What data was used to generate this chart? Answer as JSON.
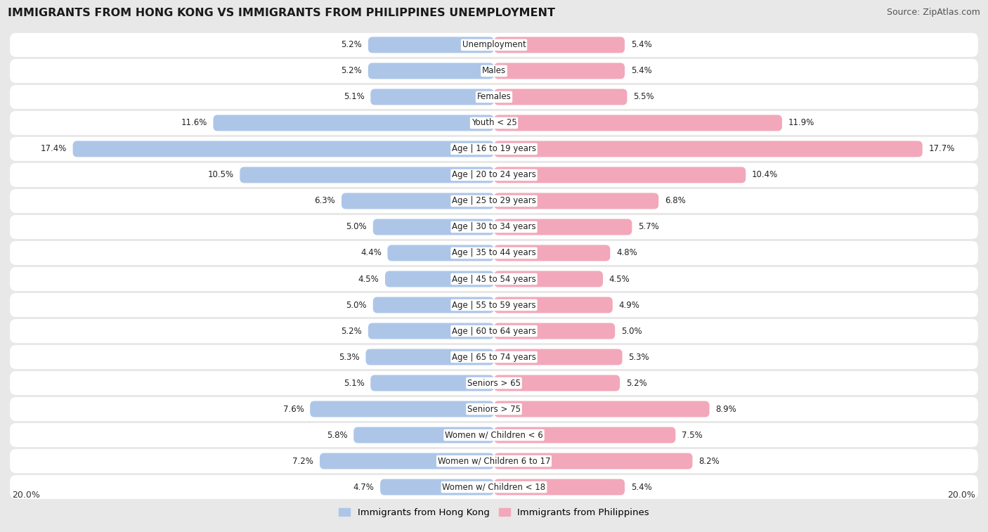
{
  "title": "IMMIGRANTS FROM HONG KONG VS IMMIGRANTS FROM PHILIPPINES UNEMPLOYMENT",
  "source": "Source: ZipAtlas.com",
  "categories": [
    "Unemployment",
    "Males",
    "Females",
    "Youth < 25",
    "Age | 16 to 19 years",
    "Age | 20 to 24 years",
    "Age | 25 to 29 years",
    "Age | 30 to 34 years",
    "Age | 35 to 44 years",
    "Age | 45 to 54 years",
    "Age | 55 to 59 years",
    "Age | 60 to 64 years",
    "Age | 65 to 74 years",
    "Seniors > 65",
    "Seniors > 75",
    "Women w/ Children < 6",
    "Women w/ Children 6 to 17",
    "Women w/ Children < 18"
  ],
  "hk_values": [
    5.2,
    5.2,
    5.1,
    11.6,
    17.4,
    10.5,
    6.3,
    5.0,
    4.4,
    4.5,
    5.0,
    5.2,
    5.3,
    5.1,
    7.6,
    5.8,
    7.2,
    4.7
  ],
  "ph_values": [
    5.4,
    5.4,
    5.5,
    11.9,
    17.7,
    10.4,
    6.8,
    5.7,
    4.8,
    4.5,
    4.9,
    5.0,
    5.3,
    5.2,
    8.9,
    7.5,
    8.2,
    5.4
  ],
  "hk_color": "#adc6e8",
  "ph_color": "#f2a8ba",
  "bg_color": "#e8e8e8",
  "row_bg_color": "#ffffff",
  "axis_max": 20.0,
  "legend_hk": "Immigrants from Hong Kong",
  "legend_ph": "Immigrants from Philippines",
  "title_fontsize": 11.5,
  "source_fontsize": 9,
  "label_fontsize": 8.5,
  "value_fontsize": 8.5
}
